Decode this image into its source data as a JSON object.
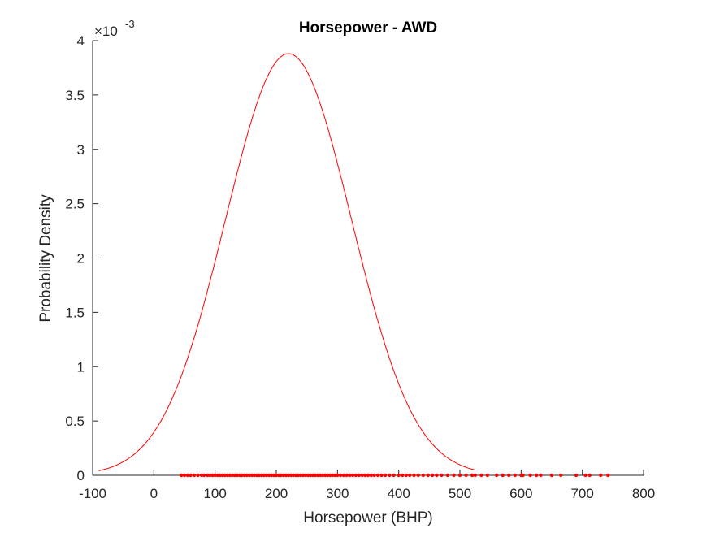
{
  "chart_data": {
    "type": "line",
    "title": "Horsepower - AWD",
    "xlabel": "Horsepower (BHP)",
    "ylabel": "Probability Density",
    "y_scale_multiplier": "×10⁻³",
    "y_exponent_base": "×10",
    "y_exponent_power": "-3",
    "xlim": [
      -100,
      800
    ],
    "ylim": [
      0,
      4
    ],
    "xticks": [
      -100,
      0,
      100,
      200,
      300,
      400,
      500,
      600,
      700,
      800
    ],
    "yticks": [
      0,
      0.5,
      1,
      1.5,
      2,
      2.5,
      3,
      3.5,
      4
    ],
    "xtick_labels": [
      "-100",
      "0",
      "100",
      "200",
      "300",
      "400",
      "500",
      "600",
      "700",
      "800"
    ],
    "ytick_labels": [
      "0",
      "0.5",
      "1",
      "1.5",
      "2",
      "2.5",
      "3",
      "3.5",
      "4"
    ],
    "grid": false,
    "colors": {
      "curve": "#ff0000",
      "points": "#ff0000",
      "axes": "#262626"
    },
    "series": [
      {
        "kind": "normal-pdf-curve",
        "mean": 220,
        "std": 103,
        "peak": 3.88,
        "x_range": [
          -90,
          525
        ]
      },
      {
        "kind": "data-points",
        "y": 0,
        "x": [
          45,
          50,
          55,
          60,
          66,
          72,
          78,
          82,
          88,
          92,
          96,
          100,
          104,
          108,
          112,
          116,
          120,
          124,
          128,
          132,
          136,
          140,
          144,
          148,
          152,
          156,
          160,
          164,
          168,
          172,
          176,
          180,
          184,
          188,
          192,
          196,
          200,
          204,
          208,
          212,
          216,
          220,
          224,
          228,
          232,
          236,
          240,
          244,
          248,
          252,
          256,
          260,
          264,
          268,
          272,
          276,
          280,
          284,
          288,
          292,
          296,
          300,
          305,
          310,
          315,
          320,
          325,
          330,
          335,
          340,
          345,
          350,
          355,
          360,
          366,
          372,
          378,
          385,
          392,
          400,
          406,
          412,
          418,
          425,
          432,
          440,
          448,
          455,
          462,
          470,
          480,
          490,
          500,
          510,
          520,
          525,
          535,
          545,
          560,
          570,
          580,
          590,
          600,
          603,
          615,
          625,
          632,
          650,
          665,
          690,
          705,
          712,
          730,
          742
        ]
      }
    ]
  }
}
